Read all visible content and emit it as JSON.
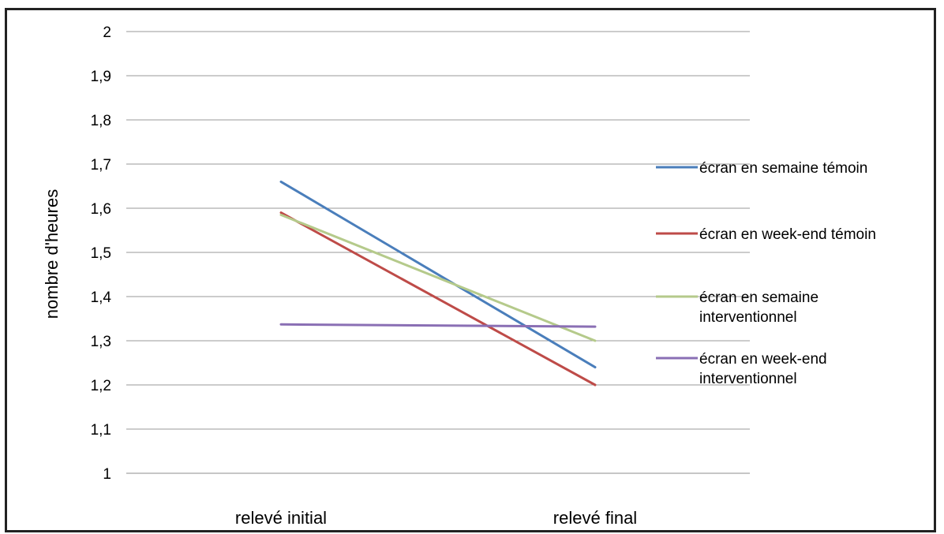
{
  "chart_data": {
    "type": "line",
    "title": "",
    "xlabel": "",
    "ylabel": "nombre d'heures",
    "categories": [
      "relevé initial",
      "relevé final"
    ],
    "ylim": [
      1,
      2
    ],
    "yticks": [
      "1",
      "1,1",
      "1,2",
      "1,3",
      "1,4",
      "1,5",
      "1,6",
      "1,7",
      "1,8",
      "1,9",
      "2"
    ],
    "grid": true,
    "legend_position": "right",
    "series": [
      {
        "name": "écran en semaine témoin",
        "lines": [
          "écran en semaine témoin"
        ],
        "color": "#4a7ebb",
        "values": [
          1.66,
          1.24
        ]
      },
      {
        "name": "écran en week-end témoin",
        "lines": [
          "écran en week-end témoin"
        ],
        "color": "#be4b48",
        "values": [
          1.59,
          1.2
        ]
      },
      {
        "name": "écran en semaine interventionnel",
        "lines": [
          "écran en semaine",
          "interventionnel"
        ],
        "color": "#b5ca8b",
        "values": [
          1.585,
          1.3
        ]
      },
      {
        "name": "écran en week-end interventionnel",
        "lines": [
          "écran en week-end",
          "interventionnel"
        ],
        "color": "#8a6fb4",
        "values": [
          1.337,
          1.332
        ]
      }
    ]
  }
}
